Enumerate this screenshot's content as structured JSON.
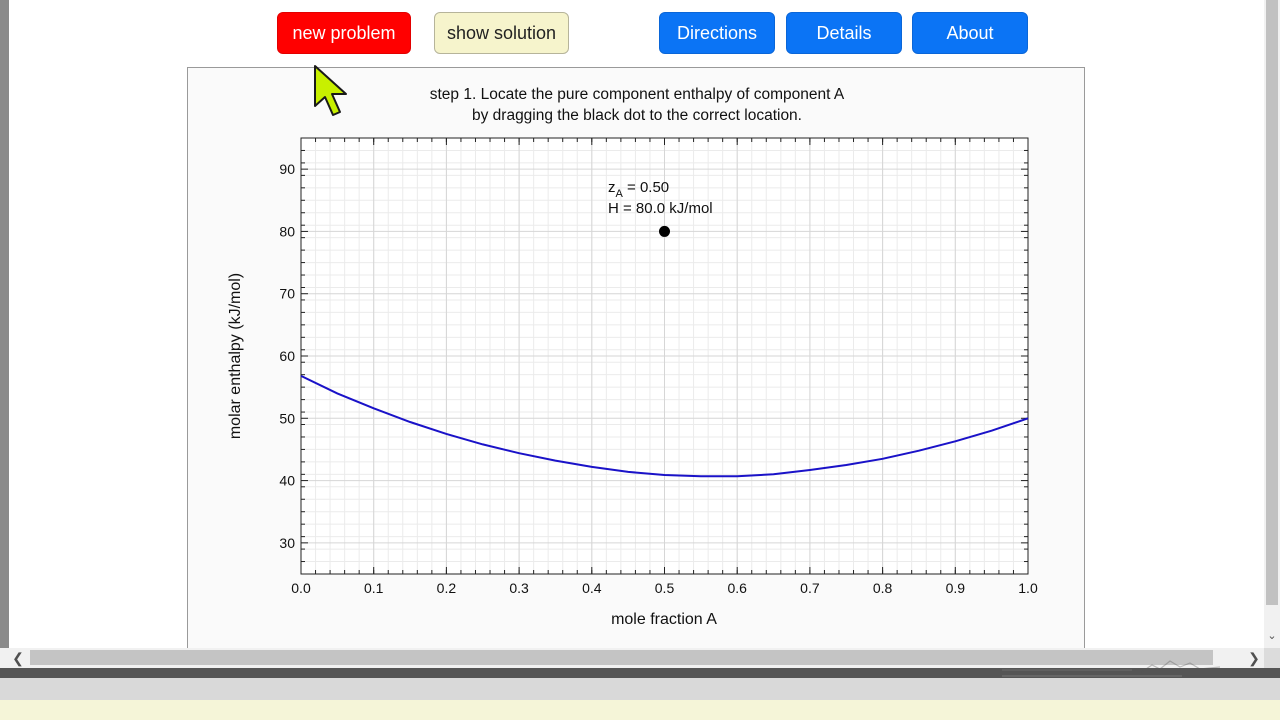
{
  "toolbar": {
    "new_problem": "new problem",
    "show_solution": "show solution",
    "directions": "Directions",
    "details": "Details",
    "about": "About"
  },
  "instructions": {
    "line1": "step 1. Locate the pure component enthalpy of component A",
    "line2": "by dragging the black dot to the correct location."
  },
  "readout": {
    "z_prefix": "z",
    "z_subscript": "A",
    "z_value": " = 0.50",
    "h_text": "H = 80.0 kJ/mol"
  },
  "colors": {
    "curve": "#1a12c8",
    "new_problem_bg": "#ff0000",
    "show_solution_bg": "#f6f4cc",
    "nav_button_bg": "#0b74f5",
    "cursor": "#c8f000"
  },
  "icons": {
    "cursor": "mouse-pointer-icon",
    "scroll_left": "chevron-left-icon",
    "scroll_right": "chevron-right-icon",
    "scroll_down": "chevron-down-icon",
    "logo": "university-logo-icon"
  },
  "scroll_glyphs": {
    "left": "❮",
    "right": "❯",
    "down": "⌄"
  },
  "chart_data": {
    "type": "line",
    "xlabel": "mole fraction A",
    "ylabel": "molar enthalpy (kJ/mol)",
    "xlim": [
      0,
      1.0
    ],
    "ylim": [
      25,
      95
    ],
    "xticks": [
      "0.0",
      "0.1",
      "0.2",
      "0.3",
      "0.4",
      "0.5",
      "0.6",
      "0.7",
      "0.8",
      "0.9",
      "1.0"
    ],
    "yticks": [
      "30",
      "40",
      "50",
      "60",
      "70",
      "80",
      "90"
    ],
    "grid": true,
    "series": [
      {
        "x": [
          0.0,
          0.05,
          0.1,
          0.15,
          0.2,
          0.25,
          0.3,
          0.35,
          0.4,
          0.45,
          0.5,
          0.55,
          0.6,
          0.65,
          0.7,
          0.75,
          0.8,
          0.85,
          0.9,
          0.95,
          1.0
        ],
        "y": [
          56.8,
          54.0,
          51.6,
          49.4,
          47.5,
          45.8,
          44.4,
          43.2,
          42.2,
          41.4,
          40.9,
          40.7,
          40.7,
          41.0,
          41.7,
          42.5,
          43.5,
          44.8,
          46.3,
          48.0,
          50.0
        ]
      }
    ],
    "marker": {
      "x": 0.5,
      "y": 80.0
    }
  }
}
